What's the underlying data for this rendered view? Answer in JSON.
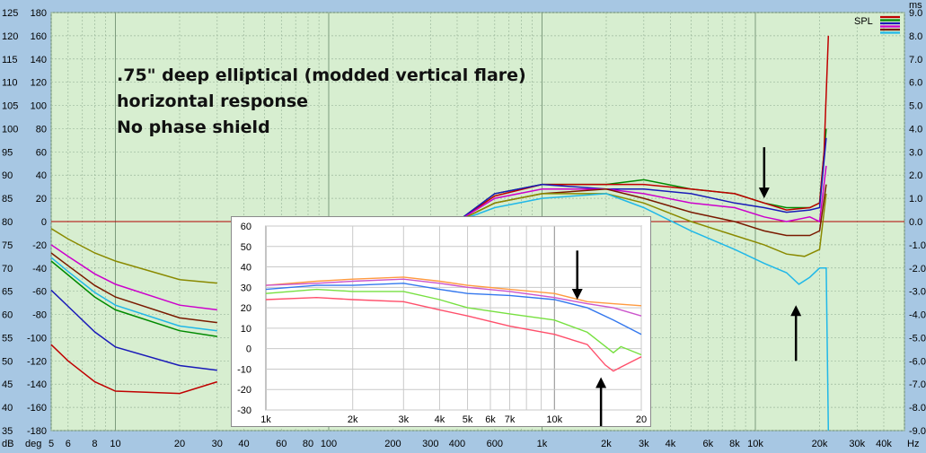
{
  "annotation": {
    "line1": ".75\" deep elliptical (modded vertical flare)",
    "line2": "horizontal response",
    "line3": "No phase shield"
  },
  "legend": {
    "label": "SPL",
    "swatch_colors": [
      "#c00000",
      "#008a00",
      "#1a1ab8",
      "#cc00cc",
      "#7a1a00",
      "#20b8e8"
    ]
  },
  "chart_data": [
    {
      "type": "line",
      "title": "",
      "x_scale": "log",
      "xlim": [
        5,
        50000
      ],
      "x_ticks": [
        {
          "v": 5,
          "label": "5"
        },
        {
          "v": 6,
          "label": "6"
        },
        {
          "v": 8,
          "label": "8"
        },
        {
          "v": 10,
          "label": "10"
        },
        {
          "v": 20,
          "label": "20"
        },
        {
          "v": 30,
          "label": "30"
        },
        {
          "v": 40,
          "label": "40"
        },
        {
          "v": 60,
          "label": "60"
        },
        {
          "v": 80,
          "label": "80"
        },
        {
          "v": 100,
          "label": "100"
        },
        {
          "v": 200,
          "label": "200"
        },
        {
          "v": 300,
          "label": "300"
        },
        {
          "v": 400,
          "label": "400"
        },
        {
          "v": 600,
          "label": "600"
        },
        {
          "v": 1000,
          "label": "1k"
        },
        {
          "v": 2000,
          "label": "2k"
        },
        {
          "v": 3000,
          "label": "3k"
        },
        {
          "v": 4000,
          "label": "4k"
        },
        {
          "v": 6000,
          "label": "6k"
        },
        {
          "v": 8000,
          "label": "8k"
        },
        {
          "v": 10000,
          "label": "10k"
        },
        {
          "v": 20000,
          "label": "20k"
        },
        {
          "v": 30000,
          "label": "30k"
        },
        {
          "v": 40000,
          "label": "40k"
        }
      ],
      "x_unit": "Hz",
      "ylim_db": [
        35,
        125
      ],
      "y_db_ticks": [
        35,
        40,
        45,
        50,
        55,
        60,
        65,
        70,
        75,
        80,
        85,
        90,
        95,
        100,
        105,
        110,
        115,
        120,
        125
      ],
      "y_db_unit": "dB",
      "y_deg_labels": [
        "-180",
        "-160",
        "-140",
        "-120",
        "-100",
        "-80",
        "-60",
        "-40",
        "-20",
        "0",
        "20",
        "40",
        "60",
        "80",
        "100",
        "120",
        "140",
        "160",
        "180"
      ],
      "y_deg_unit": "deg",
      "y_ms_labels": [
        "-9.0",
        "-8.0",
        "-7.0",
        "-6.0",
        "-5.0",
        "-4.0",
        "-3.0",
        "-2.0",
        "-1.0",
        "0.0",
        "1.0",
        "2.0",
        "3.0",
        "4.0",
        "5.0",
        "6.0",
        "7.0",
        "8.0",
        "9.0"
      ],
      "y_ms_unit": "ms",
      "reference_line_db": 80,
      "series": [
        {
          "color": "#008a00",
          "points": [
            [
              400,
              80
            ],
            [
              600,
              86
            ],
            [
              1000,
              88
            ],
            [
              2000,
              88
            ],
            [
              3000,
              89
            ],
            [
              5000,
              87
            ],
            [
              8000,
              86
            ],
            [
              11000,
              84
            ],
            [
              14000,
              83
            ],
            [
              18000,
              83
            ],
            [
              20000,
              84
            ],
            [
              21500,
              100
            ]
          ]
        },
        {
          "color": "#c00000",
          "points": [
            [
              400,
              80
            ],
            [
              600,
              85.5
            ],
            [
              1000,
              88
            ],
            [
              2000,
              88
            ],
            [
              3000,
              88
            ],
            [
              5000,
              87
            ],
            [
              8000,
              86
            ],
            [
              11000,
              84
            ],
            [
              14000,
              82.5
            ],
            [
              18000,
              83
            ],
            [
              20000,
              84
            ],
            [
              21000,
              95
            ],
            [
              22000,
              120
            ]
          ]
        },
        {
          "color": "#1a1ab8",
          "points": [
            [
              400,
              80
            ],
            [
              600,
              86
            ],
            [
              1000,
              88
            ],
            [
              2000,
              87
            ],
            [
              3000,
              87
            ],
            [
              5000,
              86
            ],
            [
              8000,
              84
            ],
            [
              11000,
              83
            ],
            [
              14000,
              82
            ],
            [
              18000,
              82.5
            ],
            [
              20000,
              83
            ],
            [
              21500,
              98
            ]
          ]
        },
        {
          "color": "#cc00cc",
          "points": [
            [
              400,
              80
            ],
            [
              600,
              85
            ],
            [
              1000,
              87
            ],
            [
              2000,
              87
            ],
            [
              3000,
              86
            ],
            [
              5000,
              84
            ],
            [
              8000,
              83
            ],
            [
              11000,
              81
            ],
            [
              14000,
              80
            ],
            [
              18000,
              81
            ],
            [
              20000,
              80
            ],
            [
              21500,
              92
            ]
          ]
        },
        {
          "color": "#7a1a00",
          "points": [
            [
              400,
              80
            ],
            [
              600,
              84
            ],
            [
              1000,
              86
            ],
            [
              2000,
              87
            ],
            [
              3000,
              85
            ],
            [
              5000,
              82
            ],
            [
              8000,
              80
            ],
            [
              11000,
              78
            ],
            [
              14000,
              77
            ],
            [
              18000,
              77
            ],
            [
              20000,
              78
            ],
            [
              21500,
              88
            ]
          ]
        },
        {
          "color": "#8a8a00",
          "points": [
            [
              400,
              80
            ],
            [
              600,
              84
            ],
            [
              1000,
              86
            ],
            [
              2000,
              86
            ],
            [
              3000,
              84
            ],
            [
              5000,
              80
            ],
            [
              8000,
              77
            ],
            [
              11000,
              75
            ],
            [
              14000,
              73
            ],
            [
              17000,
              72.5
            ],
            [
              20000,
              74
            ],
            [
              21500,
              86
            ]
          ]
        },
        {
          "color": "#20b8e8",
          "points": [
            [
              400,
              80
            ],
            [
              600,
              83
            ],
            [
              1000,
              85
            ],
            [
              2000,
              86
            ],
            [
              3000,
              83
            ],
            [
              5000,
              78
            ],
            [
              8000,
              74
            ],
            [
              11000,
              71
            ],
            [
              14000,
              69
            ],
            [
              16000,
              66.5
            ],
            [
              18000,
              68
            ],
            [
              20000,
              70
            ],
            [
              21500,
              70
            ],
            [
              22000,
              35
            ]
          ]
        }
      ],
      "phase_series": [
        {
          "color": "#8a8a00",
          "points": [
            [
              5,
              -6
            ],
            [
              6,
              -15
            ],
            [
              8,
              -27
            ],
            [
              10,
              -34
            ],
            [
              20,
              -50
            ],
            [
              30,
              -53
            ]
          ]
        },
        {
          "color": "#cc00cc",
          "points": [
            [
              5,
              -20
            ],
            [
              6,
              -30
            ],
            [
              8,
              -45
            ],
            [
              10,
              -54
            ],
            [
              20,
              -72
            ],
            [
              30,
              -76
            ]
          ]
        },
        {
          "color": "#7a1a00",
          "points": [
            [
              5,
              -27
            ],
            [
              6,
              -38
            ],
            [
              8,
              -55
            ],
            [
              10,
              -65
            ],
            [
              20,
              -83
            ],
            [
              30,
              -87
            ]
          ]
        },
        {
          "color": "#20b8e8",
          "points": [
            [
              5,
              -31
            ],
            [
              6,
              -43
            ],
            [
              8,
              -61
            ],
            [
              10,
              -72
            ],
            [
              20,
              -90
            ],
            [
              30,
              -94
            ]
          ]
        },
        {
          "color": "#008a00",
          "points": [
            [
              5,
              -34
            ],
            [
              6,
              -46
            ],
            [
              8,
              -65
            ],
            [
              10,
              -76
            ],
            [
              20,
              -94
            ],
            [
              30,
              -99
            ]
          ]
        },
        {
          "color": "#1a1ab8",
          "points": [
            [
              5,
              -59
            ],
            [
              6,
              -73
            ],
            [
              8,
              -95
            ],
            [
              10,
              -108
            ],
            [
              20,
              -124
            ],
            [
              30,
              -128
            ]
          ]
        },
        {
          "color": "#c00000",
          "points": [
            [
              5,
              -106
            ],
            [
              6,
              -120
            ],
            [
              8,
              -138
            ],
            [
              10,
              -146
            ],
            [
              20,
              -148
            ],
            [
              30,
              -138
            ]
          ]
        }
      ],
      "arrows": [
        {
          "x": 11000,
          "y_from": 96,
          "y_to": 85,
          "dir": "down"
        },
        {
          "x": 15500,
          "y_from": 50,
          "y_to": 62,
          "dir": "up"
        }
      ]
    },
    {
      "type": "line",
      "title": "",
      "x_scale": "log",
      "xlim": [
        1,
        20
      ],
      "x_ticks": [
        {
          "v": 1,
          "label": "1k"
        },
        {
          "v": 2,
          "label": "2k"
        },
        {
          "v": 3,
          "label": "3k"
        },
        {
          "v": 4,
          "label": "4k"
        },
        {
          "v": 5,
          "label": "5k"
        },
        {
          "v": 6,
          "label": "6k"
        },
        {
          "v": 7,
          "label": "7k"
        },
        {
          "v": 10,
          "label": "10k"
        },
        {
          "v": 20,
          "label": "20"
        }
      ],
      "ylim": [
        -30,
        60
      ],
      "y_ticks": [
        -30,
        -20,
        -10,
        0,
        10,
        20,
        30,
        40,
        50,
        60
      ],
      "series": [
        {
          "color": "#ff9a40",
          "points": [
            [
              1,
              31
            ],
            [
              1.5,
              33
            ],
            [
              2,
              34
            ],
            [
              3,
              35
            ],
            [
              4,
              33
            ],
            [
              5,
              31
            ],
            [
              7,
              29
            ],
            [
              10,
              27
            ],
            [
              13,
              23
            ],
            [
              16,
              22
            ],
            [
              20,
              21
            ]
          ]
        },
        {
          "color": "#cc55cc",
          "points": [
            [
              1,
              31
            ],
            [
              1.5,
              32
            ],
            [
              2,
              33
            ],
            [
              3,
              34
            ],
            [
              4,
              32
            ],
            [
              5,
              30
            ],
            [
              7,
              28
            ],
            [
              10,
              25
            ],
            [
              13,
              22
            ],
            [
              16,
              20
            ],
            [
              20,
              16
            ]
          ]
        },
        {
          "color": "#3377ee",
          "points": [
            [
              1,
              29
            ],
            [
              1.5,
              31
            ],
            [
              2,
              31
            ],
            [
              3,
              32
            ],
            [
              4,
              29
            ],
            [
              5,
              27
            ],
            [
              7,
              26
            ],
            [
              10,
              24
            ],
            [
              13,
              20
            ],
            [
              16,
              14
            ],
            [
              20,
              7
            ]
          ]
        },
        {
          "color": "#77e040",
          "points": [
            [
              1,
              27
            ],
            [
              1.5,
              29
            ],
            [
              2,
              28
            ],
            [
              3,
              28
            ],
            [
              4,
              24
            ],
            [
              5,
              20
            ],
            [
              7,
              17
            ],
            [
              10,
              14
            ],
            [
              13,
              8
            ],
            [
              16,
              -2
            ],
            [
              17,
              1
            ],
            [
              20,
              -3
            ]
          ]
        },
        {
          "color": "#ff4f6b",
          "points": [
            [
              1,
              24
            ],
            [
              1.5,
              25
            ],
            [
              2,
              24
            ],
            [
              3,
              23
            ],
            [
              4,
              19
            ],
            [
              5,
              16
            ],
            [
              7,
              11
            ],
            [
              10,
              7
            ],
            [
              13,
              2
            ],
            [
              15,
              -8
            ],
            [
              16,
              -11
            ],
            [
              17,
              -9
            ],
            [
              20,
              -4
            ]
          ]
        }
      ],
      "arrows": [
        {
          "x": 12,
          "y_from": 48,
          "y_to": 24,
          "dir": "down"
        },
        {
          "x": 14.5,
          "y_from": -38,
          "y_to": -14,
          "dir": "up"
        }
      ]
    }
  ]
}
